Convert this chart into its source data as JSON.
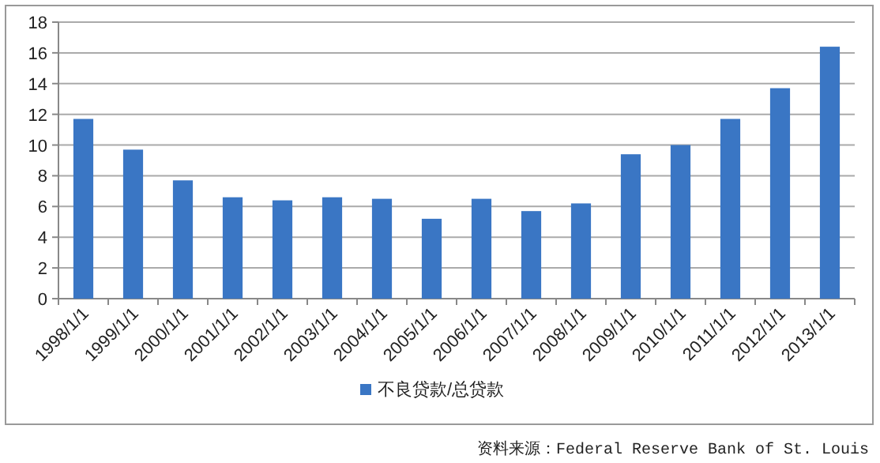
{
  "chart_data": {
    "type": "bar",
    "categories": [
      "1998/1/1",
      "1999/1/1",
      "2000/1/1",
      "2001/1/1",
      "2002/1/1",
      "2003/1/1",
      "2004/1/1",
      "2005/1/1",
      "2006/1/1",
      "2007/1/1",
      "2008/1/1",
      "2009/1/1",
      "2010/1/1",
      "2011/1/1",
      "2012/1/1",
      "2013/1/1"
    ],
    "series": [
      {
        "name": "不良贷款/总贷款",
        "color": "#3a76c4",
        "values": [
          11.7,
          9.7,
          7.7,
          6.6,
          6.4,
          6.6,
          6.5,
          5.2,
          6.5,
          5.7,
          6.2,
          9.4,
          10.0,
          11.7,
          13.7,
          16.4
        ]
      }
    ],
    "ylim": [
      0,
      18
    ],
    "yticks": [
      0,
      2,
      4,
      6,
      8,
      10,
      12,
      14,
      16,
      18
    ],
    "grid": "y",
    "legend": "bottom",
    "annotations": [
      "资料来源：Federal Reserve Bank of St. Louis"
    ]
  }
}
